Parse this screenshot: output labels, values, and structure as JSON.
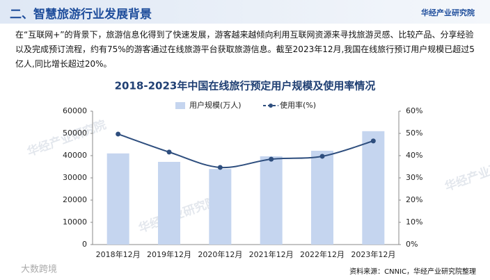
{
  "header": {
    "title": "二、智慧旅游行业发展背景",
    "logo": "华经产业研究院"
  },
  "paragraph": "在“互联网+”的背景下，旅游信息化得到了快速发展，游客越来越倾向利用互联网资源来寻找旅游灵感、比较产品、分享经验以及完成预订流程，约有75%的游客通过在线旅游平台获取旅游信息。截至2023年12月,我国在线旅行预订用户规模已超过5亿人,同比增长超过20%。",
  "watermark": "华经产业研究院",
  "corner_watermark": "大数跨境",
  "source": "资料来源：CNNIC，华经产业研究院整理",
  "chart_data": {
    "type": "bar_line",
    "title": "2018-2023年中国在线旅行预定用户规模及使用率情况",
    "categories": [
      "2018年12月",
      "2019年12月",
      "2020年12月",
      "2021年12月",
      "2022年12月",
      "2023年12月"
    ],
    "series": [
      {
        "name": "用户规模(万人)",
        "type": "bar",
        "color": "#c5d5ef",
        "values": [
          41000,
          37200,
          34000,
          39700,
          42200,
          51000
        ]
      },
      {
        "name": "使用率(%)",
        "type": "line",
        "axis": "y2",
        "color": "#2e4e7e",
        "values": [
          49.7,
          41.6,
          34.7,
          38.4,
          39.7,
          46.6
        ]
      }
    ],
    "ylim": [
      0,
      60000
    ],
    "yticks": [
      0,
      10000,
      20000,
      30000,
      40000,
      50000,
      60000
    ],
    "y2lim": [
      0,
      60
    ],
    "y2ticks": [
      {
        "value": 0,
        "label": "0%"
      },
      {
        "value": 10,
        "label": "10%"
      },
      {
        "value": 20,
        "label": "20%"
      },
      {
        "value": 30,
        "label": "30%"
      },
      {
        "value": 40,
        "label": "40%"
      },
      {
        "value": 50,
        "label": "50%"
      },
      {
        "value": 60,
        "label": "60%"
      }
    ]
  }
}
